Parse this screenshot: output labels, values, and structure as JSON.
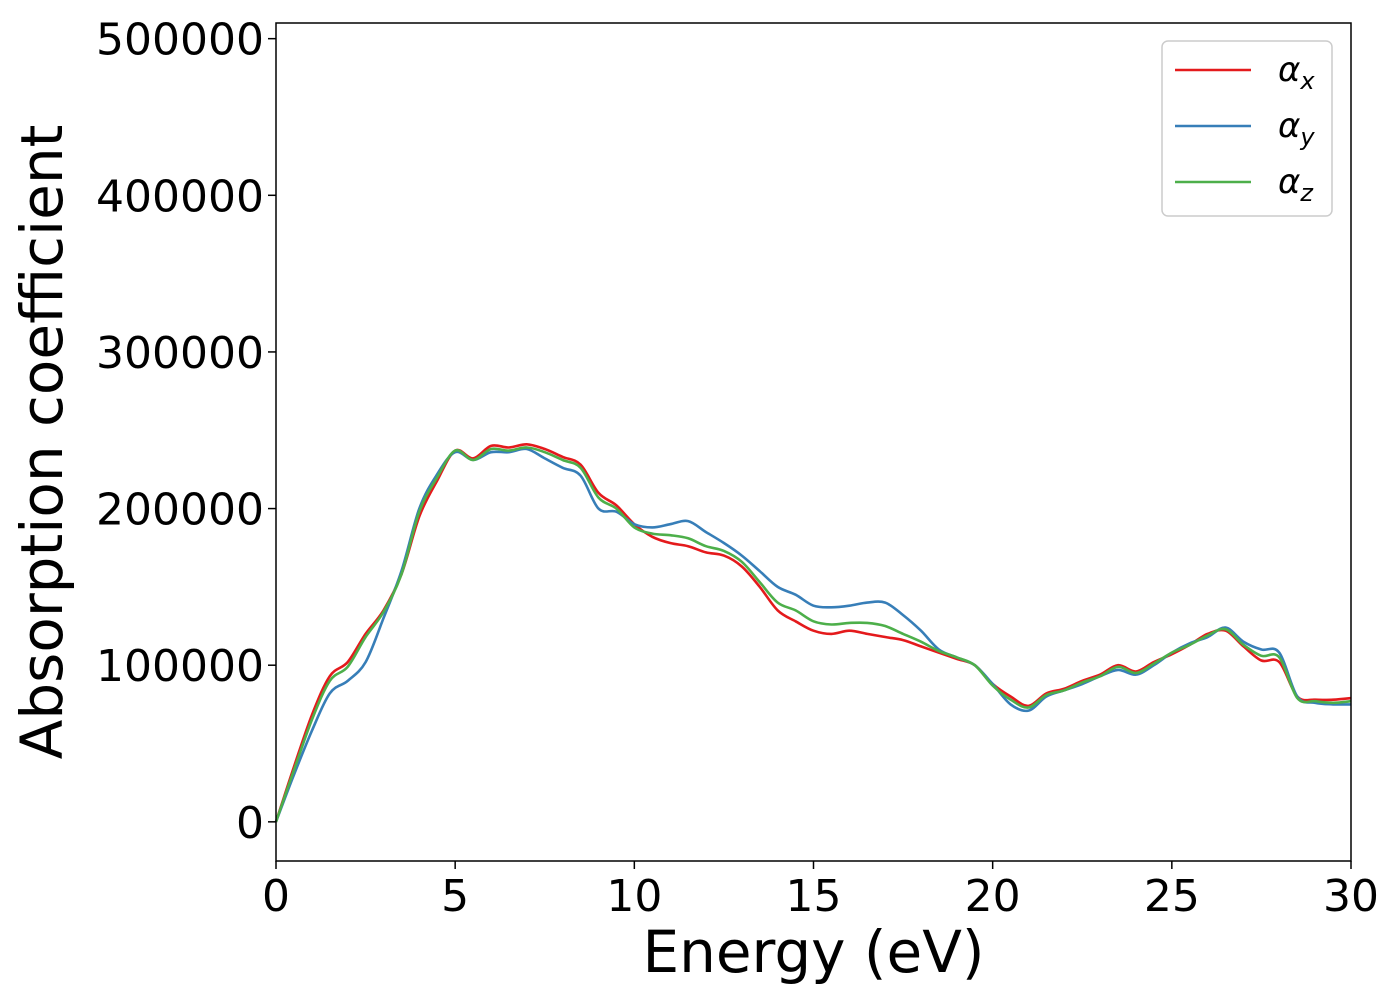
{
  "chart_data": {
    "type": "line",
    "title": "",
    "xlabel": "Energy (eV)",
    "ylabel": "Absorption coefficient",
    "xlim": [
      0,
      30
    ],
    "ylim": [
      -25000,
      510000
    ],
    "xticks": [
      "0",
      "5",
      "10",
      "15",
      "20",
      "25",
      "30"
    ],
    "yticks": [
      "0",
      "100000",
      "200000",
      "300000",
      "400000",
      "500000"
    ],
    "grid": false,
    "legend_position": "top-right",
    "series": [
      {
        "name": "αx",
        "base": "α",
        "subscript": "x",
        "color": "#e41a1c",
        "x": [
          0,
          0.5,
          1,
          1.5,
          2,
          2.5,
          3,
          3.5,
          4,
          4.5,
          5,
          5.5,
          6,
          6.5,
          7,
          7.5,
          8,
          8.5,
          9,
          9.5,
          10,
          10.5,
          11,
          11.5,
          12,
          12.5,
          13,
          13.5,
          14,
          14.5,
          15,
          15.5,
          16,
          16.5,
          17,
          17.5,
          18,
          18.5,
          19,
          19.5,
          20,
          20.5,
          21,
          21.5,
          22,
          22.5,
          23,
          23.5,
          24,
          24.5,
          25,
          25.5,
          26,
          26.5,
          27,
          27.5,
          28,
          28.5,
          29,
          29.5,
          30
        ],
        "values": [
          0,
          35000,
          68000,
          93000,
          102000,
          120000,
          135000,
          158000,
          195000,
          218000,
          237000,
          232000,
          240000,
          239000,
          241000,
          238000,
          233000,
          228000,
          210000,
          202000,
          190000,
          182000,
          178000,
          176000,
          172000,
          170000,
          163000,
          150000,
          135000,
          128000,
          122000,
          120000,
          122000,
          120000,
          118000,
          116000,
          112000,
          108000,
          104000,
          100000,
          88000,
          80000,
          74000,
          82000,
          85000,
          90000,
          94000,
          100000,
          96000,
          102000,
          107000,
          113000,
          120000,
          122000,
          112000,
          103000,
          102000,
          80000,
          78000,
          78000,
          79000
        ]
      },
      {
        "name": "αy",
        "base": "α",
        "subscript": "y",
        "color": "#377eb8",
        "x": [
          0,
          0.5,
          1,
          1.5,
          2,
          2.5,
          3,
          3.5,
          4,
          4.5,
          5,
          5.5,
          6,
          6.5,
          7,
          7.5,
          8,
          8.5,
          9,
          9.5,
          10,
          10.5,
          11,
          11.5,
          12,
          12.5,
          13,
          13.5,
          14,
          14.5,
          15,
          15.5,
          16,
          16.5,
          17,
          17.5,
          18,
          18.5,
          19,
          19.5,
          20,
          20.5,
          21,
          21.5,
          22,
          22.5,
          23,
          23.5,
          24,
          24.5,
          25,
          25.5,
          26,
          26.5,
          27,
          27.5,
          28,
          28.5,
          29,
          29.5,
          30
        ],
        "values": [
          0,
          30000,
          58000,
          82000,
          90000,
          102000,
          130000,
          160000,
          200000,
          222000,
          236000,
          231000,
          236000,
          236000,
          238000,
          232000,
          226000,
          221000,
          200000,
          198000,
          190000,
          188000,
          190000,
          192000,
          185000,
          178000,
          170000,
          160000,
          150000,
          145000,
          138000,
          137000,
          138000,
          140000,
          140000,
          132000,
          122000,
          110000,
          105000,
          100000,
          88000,
          75000,
          71000,
          80000,
          84000,
          88000,
          93000,
          97000,
          94000,
          100000,
          108000,
          114000,
          118000,
          124000,
          115000,
          110000,
          108000,
          80000,
          76000,
          75000,
          75000
        ]
      },
      {
        "name": "αz",
        "base": "α",
        "subscript": "z",
        "color": "#4daf4a",
        "x": [
          0,
          0.5,
          1,
          1.5,
          2,
          2.5,
          3,
          3.5,
          4,
          4.5,
          5,
          5.5,
          6,
          6.5,
          7,
          7.5,
          8,
          8.5,
          9,
          9.5,
          10,
          10.5,
          11,
          11.5,
          12,
          12.5,
          13,
          13.5,
          14,
          14.5,
          15,
          15.5,
          16,
          16.5,
          17,
          17.5,
          18,
          18.5,
          19,
          19.5,
          20,
          20.5,
          21,
          21.5,
          22,
          22.5,
          23,
          23.5,
          24,
          24.5,
          25,
          25.5,
          26,
          26.5,
          27,
          27.5,
          28,
          28.5,
          29,
          29.5,
          30
        ],
        "values": [
          0,
          33000,
          65000,
          90000,
          99000,
          118000,
          134000,
          158000,
          198000,
          220000,
          237000,
          231000,
          238000,
          237000,
          239000,
          236000,
          231000,
          226000,
          207000,
          200000,
          188000,
          184000,
          183000,
          181000,
          176000,
          173000,
          166000,
          153000,
          140000,
          135000,
          128000,
          126000,
          127000,
          127000,
          125000,
          120000,
          115000,
          109000,
          105000,
          100000,
          87000,
          78000,
          73000,
          81000,
          84000,
          89000,
          93000,
          99000,
          95000,
          101000,
          108000,
          113000,
          119000,
          123000,
          113000,
          106000,
          105000,
          79000,
          77000,
          76000,
          77000
        ]
      }
    ]
  }
}
